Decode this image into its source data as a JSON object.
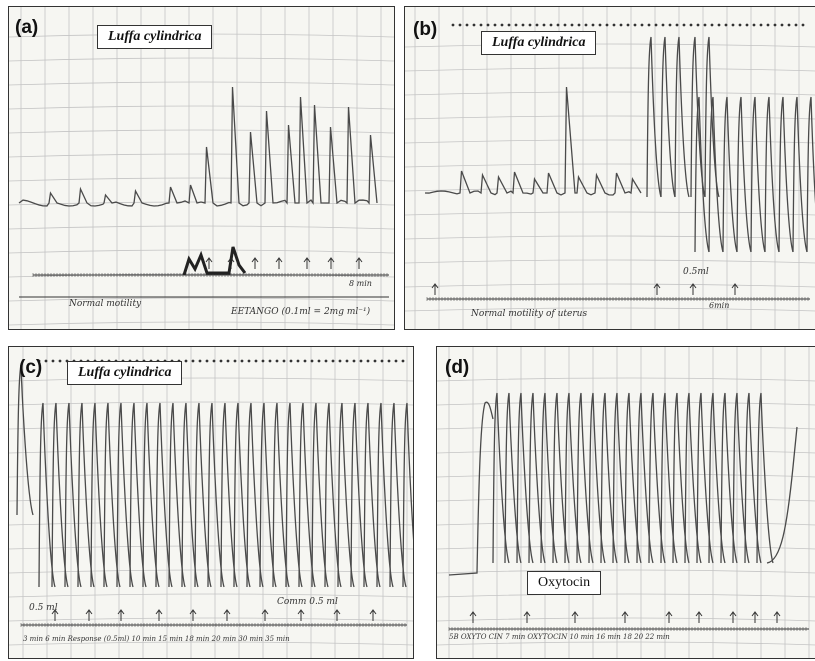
{
  "panels": {
    "a": {
      "letter": "(a)",
      "species": "Luffa cylindrica",
      "note_left": "Normal motility",
      "note_right": "EETANGO (0.1ml = 2mg ml⁻¹)",
      "time_label": "8 min"
    },
    "b": {
      "letter": "(b)",
      "species": "Luffa cylindrica",
      "note_dose": "0.5ml",
      "note_bottom": "Normal motility of uterus",
      "time_label": "6min"
    },
    "c": {
      "letter": "(c)",
      "species": "Luffa cylindrica",
      "note_dose": "0.5 ml",
      "note_mid": "Comm 0.5 ml",
      "time_label": "3 min   6 min   Response (0.5ml)   10 min   15 min   18 min   20 min   30 min   35 min"
    },
    "d": {
      "letter": "(d)",
      "drug": "Oxytocin",
      "time_label": "5B   OXYTO CIN   7 min   OXYTOCIN   10 min   16 min   18   20   22 min"
    }
  },
  "colors": {
    "trace": "#4a4a4a",
    "grid": "#c4c4c4",
    "border": "#333333"
  }
}
